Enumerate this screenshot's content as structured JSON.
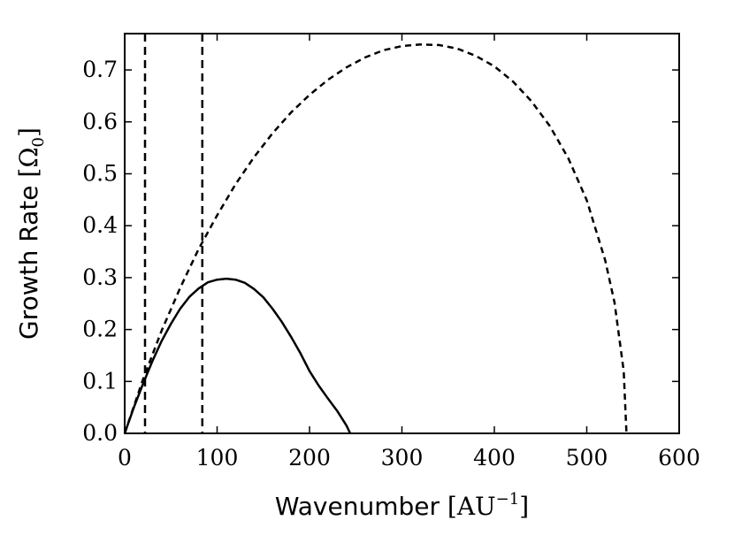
{
  "chart_data": {
    "type": "line",
    "xlabel": {
      "text": "Wavenumber",
      "unit_prefix": "[AU",
      "unit_superscript": "−1",
      "unit_suffix": "]"
    },
    "ylabel": {
      "text": "Growth Rate",
      "unit_prefix": "[Ω",
      "unit_subscript": "0",
      "unit_suffix": "]"
    },
    "xlim": [
      0,
      600
    ],
    "ylim": [
      0,
      0.77
    ],
    "xticks": [
      0,
      100,
      200,
      300,
      400,
      500,
      600
    ],
    "xtick_labels": [
      "0",
      "100",
      "200",
      "300",
      "400",
      "500",
      "600"
    ],
    "yticks": [
      0.0,
      0.1,
      0.2,
      0.3,
      0.4,
      0.5,
      0.6,
      0.7
    ],
    "ytick_labels": [
      "0.0",
      "0.1",
      "0.2",
      "0.3",
      "0.4",
      "0.5",
      "0.6",
      "0.7"
    ],
    "grid": false,
    "legend": "none",
    "series": [
      {
        "style": "solid",
        "color": "#000000",
        "x": [
          0,
          10,
          20,
          30,
          40,
          50,
          60,
          70,
          80,
          90,
          100,
          110,
          120,
          130,
          140,
          150,
          160,
          170,
          180,
          190,
          200,
          210,
          220,
          230,
          240,
          244
        ],
        "y": [
          0,
          0.05,
          0.096,
          0.139,
          0.178,
          0.211,
          0.24,
          0.263,
          0.279,
          0.291,
          0.296,
          0.298,
          0.296,
          0.29,
          0.278,
          0.262,
          0.24,
          0.215,
          0.186,
          0.155,
          0.12,
          0.092,
          0.067,
          0.043,
          0.015,
          0
        ]
      },
      {
        "style": "dashed",
        "color": "#000000",
        "x": [
          0,
          20,
          40,
          60,
          80,
          100,
          120,
          140,
          160,
          180,
          200,
          220,
          240,
          260,
          280,
          300,
          320,
          340,
          360,
          380,
          400,
          420,
          440,
          460,
          480,
          500,
          520,
          530,
          540,
          543
        ],
        "y": [
          0,
          0.105,
          0.198,
          0.28,
          0.355,
          0.42,
          0.48,
          0.532,
          0.578,
          0.618,
          0.652,
          0.681,
          0.705,
          0.724,
          0.738,
          0.746,
          0.749,
          0.748,
          0.741,
          0.727,
          0.707,
          0.678,
          0.64,
          0.592,
          0.53,
          0.449,
          0.333,
          0.252,
          0.12,
          0
        ]
      }
    ],
    "vlines": [
      {
        "x": 22,
        "style": "dashed",
        "color": "#000000"
      },
      {
        "x": 84,
        "style": "dashed",
        "color": "#000000"
      }
    ]
  }
}
